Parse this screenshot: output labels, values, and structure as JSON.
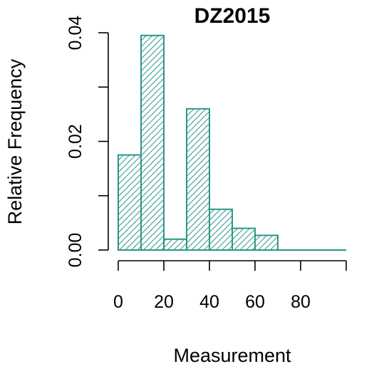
{
  "chart_data": {
    "type": "bar",
    "title": "DZ2015",
    "xlabel": "Measurement",
    "ylabel": "Relative Frequency",
    "bins": [
      {
        "start": 0,
        "end": 10,
        "value": 0.0175
      },
      {
        "start": 10,
        "end": 20,
        "value": 0.0395
      },
      {
        "start": 20,
        "end": 30,
        "value": 0.002
      },
      {
        "start": 30,
        "end": 40,
        "value": 0.026
      },
      {
        "start": 40,
        "end": 50,
        "value": 0.0075
      },
      {
        "start": 50,
        "end": 60,
        "value": 0.004
      },
      {
        "start": 60,
        "end": 70,
        "value": 0.0027
      },
      {
        "start": 70,
        "end": 80,
        "value": 0
      },
      {
        "start": 80,
        "end": 90,
        "value": 0
      },
      {
        "start": 90,
        "end": 100,
        "value": 0
      }
    ],
    "xlim": [
      0,
      100
    ],
    "ylim": [
      0,
      0.04
    ],
    "x_ticks": [
      0,
      20,
      40,
      60,
      80,
      100
    ],
    "x_tick_labels": [
      "0",
      "20",
      "40",
      "60",
      "80",
      ""
    ],
    "y_ticks": [
      0,
      0.01,
      0.02,
      0.03,
      0.04
    ],
    "y_tick_labels": [
      "0.00",
      "",
      "0.02",
      "",
      "0.04"
    ],
    "bar_color": "#2a9688",
    "fill_pattern": "diagonal-hatch",
    "grid": false,
    "legend": "none"
  }
}
